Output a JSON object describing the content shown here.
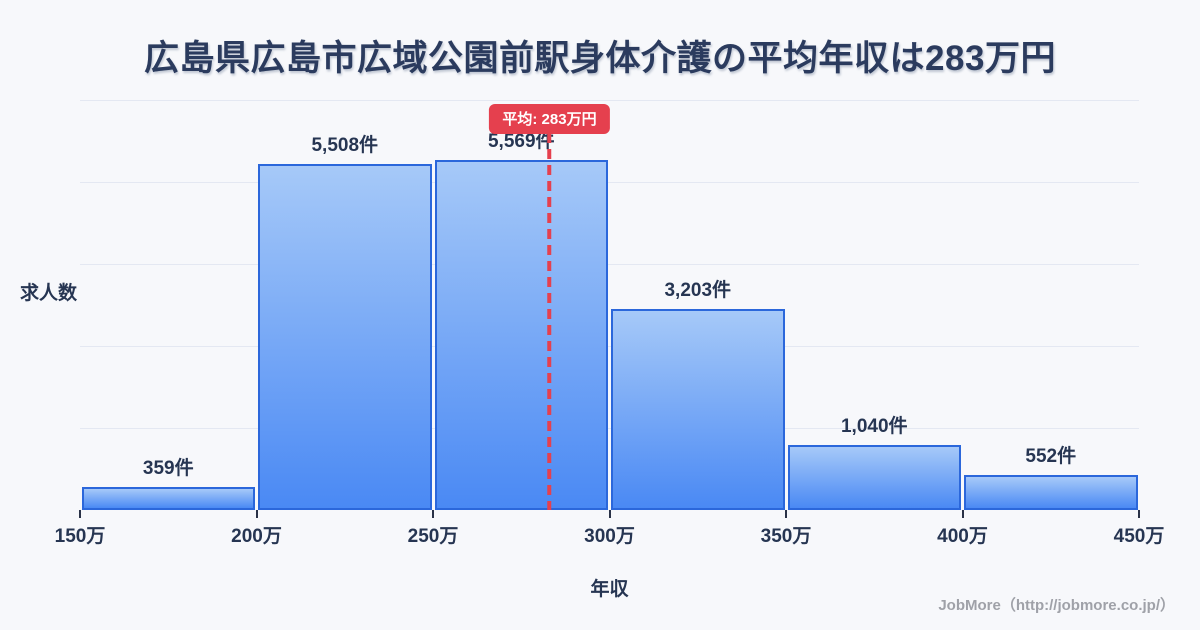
{
  "page": {
    "title": "広島県広島市広域公園前駅身体介護の平均年収は283万円",
    "footer": "JobMore（http://jobmore.co.jp/）"
  },
  "colors": {
    "background": "#f7f8fb",
    "title-text": "#2b3b5e",
    "axis-text": "#263552",
    "tick": "#2a3247",
    "gridline": "#e4e8f2",
    "bar-border": "#2b67db",
    "bar-gradient-top": "#a6c9f8",
    "bar-gradient-bottom": "#4a89f4",
    "average-line": "#e5404e",
    "badge-bg": "#e5404e",
    "badge-text": "#ffffff",
    "footer-text": "#9fa1a8"
  },
  "chart_data": {
    "type": "bar",
    "title": "広島県広島市広域公園前駅身体介護の平均年収は283万円",
    "xlabel": "年収",
    "ylabel": "求人数",
    "bin_edges": [
      150,
      200,
      250,
      300,
      350,
      400,
      450
    ],
    "bin_edge_labels": [
      "150万",
      "200万",
      "250万",
      "300万",
      "350万",
      "400万",
      "450万"
    ],
    "categories": [
      "150万-200万",
      "200万-250万",
      "250万-300万",
      "300万-350万",
      "350万-400万",
      "400万-450万"
    ],
    "values": [
      359,
      5508,
      5569,
      3203,
      1040,
      552
    ],
    "value_labels": [
      "359件",
      "5,508件",
      "5,569件",
      "3,203件",
      "1,040件",
      "552件"
    ],
    "average": {
      "value": 283,
      "label": "平均: 283万円"
    },
    "ylim": [
      0,
      6523
    ],
    "grid": "horizontal",
    "legend": "none"
  }
}
